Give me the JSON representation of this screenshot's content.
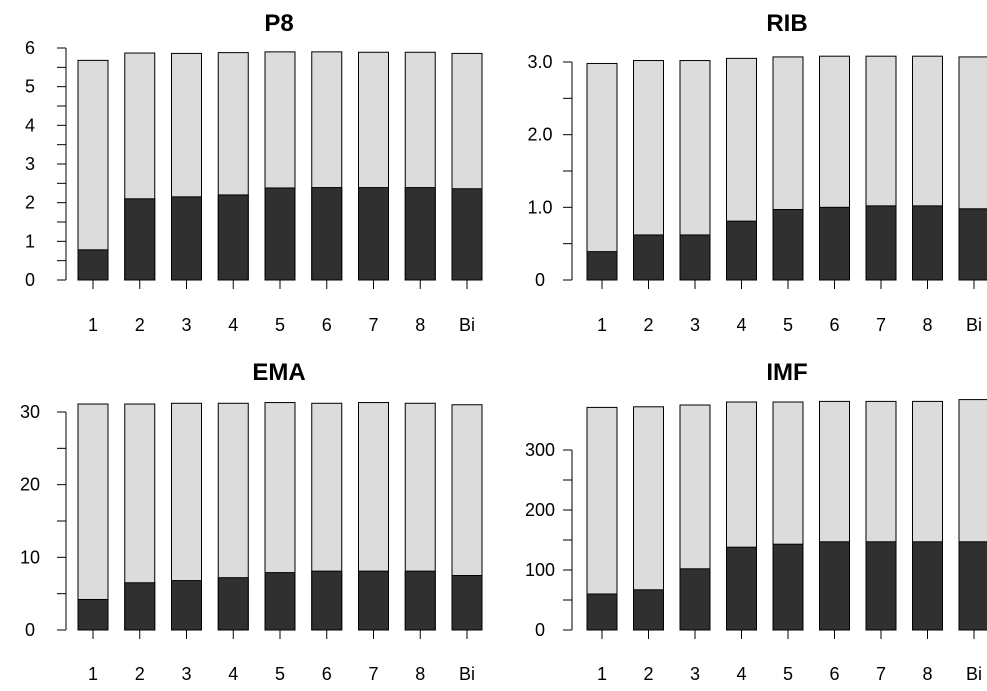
{
  "chart_data": [
    {
      "type": "bar",
      "title": "P8",
      "categories": [
        "1",
        "2",
        "3",
        "4",
        "5",
        "6",
        "7",
        "8",
        "Bi"
      ],
      "series": [
        {
          "values": [
            5.68,
            5.87,
            5.86,
            5.88,
            5.9,
            5.9,
            5.89,
            5.89,
            5.86
          ]
        },
        {
          "values": [
            0.78,
            2.1,
            2.15,
            2.2,
            2.38,
            2.39,
            2.39,
            2.39,
            2.36
          ]
        }
      ],
      "yticks": [
        "0",
        "1",
        "2",
        "3",
        "4",
        "5",
        "6"
      ],
      "ylim": [
        0,
        6
      ],
      "xlabel": "",
      "ylabel": ""
    },
    {
      "type": "bar",
      "title": "RIB",
      "categories": [
        "1",
        "2",
        "3",
        "4",
        "5",
        "6",
        "7",
        "8",
        "Bi"
      ],
      "series": [
        {
          "values": [
            2.98,
            3.02,
            3.02,
            3.05,
            3.07,
            3.08,
            3.08,
            3.08,
            3.07
          ]
        },
        {
          "values": [
            0.39,
            0.62,
            0.62,
            0.81,
            0.97,
            1.0,
            1.02,
            1.02,
            0.98
          ]
        }
      ],
      "yticks": [
        "0",
        "1.0",
        "2.0",
        "3.0"
      ],
      "ylim": [
        0,
        3.0
      ],
      "xlabel": "",
      "ylabel": ""
    },
    {
      "type": "bar",
      "title": "EMA",
      "categories": [
        "1",
        "2",
        "3",
        "4",
        "5",
        "6",
        "7",
        "8",
        "Bi"
      ],
      "series": [
        {
          "values": [
            31.1,
            31.1,
            31.2,
            31.2,
            31.3,
            31.2,
            31.3,
            31.2,
            31.0
          ]
        },
        {
          "values": [
            4.2,
            6.5,
            6.8,
            7.2,
            7.9,
            8.1,
            8.1,
            8.1,
            7.5
          ]
        }
      ],
      "yticks": [
        "0",
        "10",
        "20",
        "30"
      ],
      "ylim": [
        0,
        30
      ],
      "xlabel": "",
      "ylabel": ""
    },
    {
      "type": "bar",
      "title": "IMF",
      "categories": [
        "1",
        "2",
        "3",
        "4",
        "5",
        "6",
        "7",
        "8",
        "Bi"
      ],
      "series": [
        {
          "values": [
            371,
            372,
            375,
            380,
            380,
            381,
            381,
            381,
            384
          ]
        },
        {
          "values": [
            60,
            67,
            102,
            138,
            143,
            147,
            147,
            147,
            147
          ]
        }
      ],
      "yticks": [
        "0",
        "100",
        "200",
        "300"
      ],
      "ylim": [
        0,
        300
      ],
      "xlabel": "",
      "ylabel": ""
    }
  ]
}
